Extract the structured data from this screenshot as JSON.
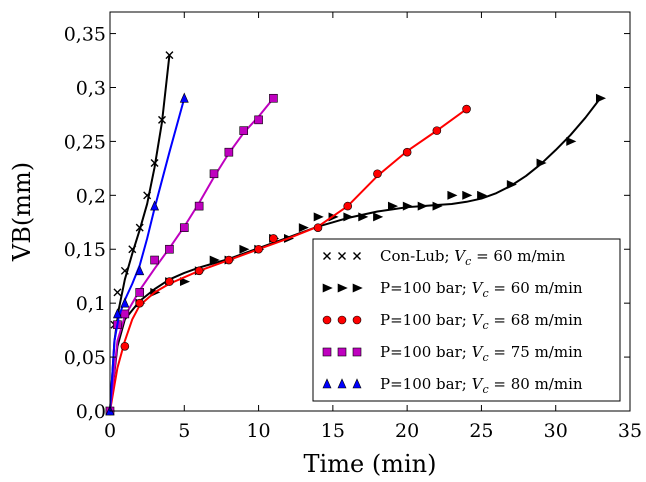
{
  "chart_data": {
    "type": "line",
    "xlabel": "Time (min)",
    "ylabel": "VB(mm)",
    "xlim": [
      0,
      35
    ],
    "ylim": [
      0,
      0.37
    ],
    "x_ticks": [
      0,
      5,
      10,
      15,
      20,
      25,
      30,
      35
    ],
    "x_tick_labels": [
      "0",
      "5",
      "10",
      "15",
      "20",
      "25",
      "30",
      "35"
    ],
    "y_ticks": [
      0,
      0.05,
      0.1,
      0.15,
      0.2,
      0.25,
      0.3,
      0.35
    ],
    "y_tick_labels": [
      "0,0",
      "0,05",
      "0,1",
      "0,15",
      "0,2",
      "0,25",
      "0,3",
      "0,35"
    ],
    "grid": false,
    "legend_position": "bottom-right",
    "series": [
      {
        "name": "Con-Lub; V_c = 60 m/min",
        "legend_prefix": "Con-Lub; ",
        "legend_suffix": " = 60 m/min",
        "marker": "x",
        "line_color": "#000000",
        "marker_color": "#000000",
        "points": [
          [
            0,
            0
          ],
          [
            0.3,
            0.08
          ],
          [
            0.5,
            0.11
          ],
          [
            1,
            0.13
          ],
          [
            1.5,
            0.15
          ],
          [
            2,
            0.17
          ],
          [
            2.5,
            0.2
          ],
          [
            3,
            0.23
          ],
          [
            3.5,
            0.27
          ],
          [
            4,
            0.33
          ]
        ],
        "fit": [
          [
            0,
            0
          ],
          [
            0.3,
            0.065
          ],
          [
            0.6,
            0.095
          ],
          [
            1,
            0.122
          ],
          [
            1.5,
            0.146
          ],
          [
            2,
            0.168
          ],
          [
            2.5,
            0.192
          ],
          [
            3,
            0.226
          ],
          [
            3.5,
            0.268
          ],
          [
            4,
            0.33
          ]
        ]
      },
      {
        "name": "P=100 bar; V_c = 60 m/min",
        "legend_prefix": "P=100 bar; ",
        "legend_suffix": " = 60 m/min",
        "marker": "triangle-right",
        "line_color": "#000000",
        "marker_color": "#000000",
        "points": [
          [
            0,
            0
          ],
          [
            1,
            0.09
          ],
          [
            2,
            0.1
          ],
          [
            3,
            0.11
          ],
          [
            4,
            0.12
          ],
          [
            5,
            0.12
          ],
          [
            6,
            0.13
          ],
          [
            7,
            0.14
          ],
          [
            8,
            0.14
          ],
          [
            9,
            0.15
          ],
          [
            10,
            0.15
          ],
          [
            11,
            0.16
          ],
          [
            12,
            0.16
          ],
          [
            13,
            0.17
          ],
          [
            14,
            0.18
          ],
          [
            15,
            0.18
          ],
          [
            16,
            0.18
          ],
          [
            17,
            0.18
          ],
          [
            18,
            0.18
          ],
          [
            19,
            0.19
          ],
          [
            20,
            0.19
          ],
          [
            21,
            0.19
          ],
          [
            22,
            0.19
          ],
          [
            23,
            0.2
          ],
          [
            24,
            0.2
          ],
          [
            25,
            0.2
          ],
          [
            27,
            0.21
          ],
          [
            29,
            0.23
          ],
          [
            31,
            0.25
          ],
          [
            33,
            0.29
          ]
        ],
        "fit": [
          [
            0,
            0
          ],
          [
            0.5,
            0.06
          ],
          [
            1,
            0.085
          ],
          [
            2,
            0.102
          ],
          [
            3,
            0.113
          ],
          [
            4,
            0.122
          ],
          [
            5,
            0.128
          ],
          [
            6,
            0.133
          ],
          [
            7,
            0.137
          ],
          [
            8,
            0.141
          ],
          [
            9,
            0.146
          ],
          [
            10,
            0.151
          ],
          [
            11,
            0.156
          ],
          [
            12,
            0.161
          ],
          [
            13,
            0.166
          ],
          [
            14,
            0.171
          ],
          [
            15,
            0.175
          ],
          [
            16,
            0.179
          ],
          [
            17,
            0.182
          ],
          [
            18,
            0.185
          ],
          [
            19,
            0.187
          ],
          [
            20,
            0.189
          ],
          [
            21,
            0.19
          ],
          [
            22,
            0.191
          ],
          [
            23,
            0.192
          ],
          [
            24,
            0.194
          ],
          [
            25,
            0.197
          ],
          [
            26,
            0.202
          ],
          [
            27,
            0.209
          ],
          [
            28,
            0.218
          ],
          [
            29,
            0.229
          ],
          [
            30,
            0.242
          ],
          [
            31,
            0.256
          ],
          [
            32,
            0.272
          ],
          [
            33,
            0.29
          ]
        ]
      },
      {
        "name": "P=100 bar; V_c = 68 m/min",
        "legend_prefix": "P=100 bar; ",
        "legend_suffix": " = 68 m/min",
        "marker": "circle",
        "line_color": "#ff0000",
        "marker_color": "#ff0000",
        "points": [
          [
            0,
            0
          ],
          [
            1,
            0.06
          ],
          [
            2,
            0.1
          ],
          [
            4,
            0.12
          ],
          [
            6,
            0.13
          ],
          [
            8,
            0.14
          ],
          [
            10,
            0.15
          ],
          [
            11,
            0.16
          ],
          [
            14,
            0.17
          ],
          [
            16,
            0.19
          ],
          [
            18,
            0.22
          ],
          [
            20,
            0.24
          ],
          [
            22,
            0.26
          ],
          [
            24,
            0.28
          ]
        ],
        "fit": [
          [
            0,
            0
          ],
          [
            0.5,
            0.04
          ],
          [
            1,
            0.065
          ],
          [
            1.5,
            0.085
          ],
          [
            2,
            0.098
          ],
          [
            3,
            0.11
          ],
          [
            4,
            0.118
          ],
          [
            6,
            0.13
          ],
          [
            8,
            0.14
          ],
          [
            10,
            0.15
          ],
          [
            12,
            0.16
          ],
          [
            14,
            0.171
          ],
          [
            16,
            0.19
          ],
          [
            18,
            0.218
          ],
          [
            20,
            0.241
          ],
          [
            22,
            0.26
          ],
          [
            24,
            0.28
          ]
        ]
      },
      {
        "name": "P=100 bar; V_c = 75 m/min",
        "legend_prefix": "P=100 bar; ",
        "legend_suffix": " = 75 m/min",
        "marker": "square",
        "line_color": "#bf00bf",
        "marker_color": "#bf00bf",
        "points": [
          [
            0,
            0
          ],
          [
            0.5,
            0.08
          ],
          [
            1,
            0.09
          ],
          [
            2,
            0.11
          ],
          [
            3,
            0.14
          ],
          [
            4,
            0.15
          ],
          [
            5,
            0.17
          ],
          [
            6,
            0.19
          ],
          [
            7,
            0.22
          ],
          [
            8,
            0.24
          ],
          [
            9,
            0.26
          ],
          [
            10,
            0.27
          ],
          [
            11,
            0.29
          ]
        ],
        "fit": [
          [
            0,
            0
          ],
          [
            0.5,
            0.065
          ],
          [
            1,
            0.088
          ],
          [
            2,
            0.112
          ],
          [
            3,
            0.132
          ],
          [
            4,
            0.151
          ],
          [
            5,
            0.171
          ],
          [
            6,
            0.193
          ],
          [
            7,
            0.217
          ],
          [
            8,
            0.239
          ],
          [
            9,
            0.258
          ],
          [
            10,
            0.273
          ],
          [
            11,
            0.29
          ]
        ]
      },
      {
        "name": "P=100 bar; V_c = 80 m/min",
        "legend_prefix": "P=100 bar; ",
        "legend_suffix": " = 80 m/min",
        "marker": "triangle-up",
        "line_color": "#0000ff",
        "marker_color": "#0000ff",
        "points": [
          [
            0,
            0
          ],
          [
            0.5,
            0.09
          ],
          [
            1,
            0.1
          ],
          [
            2,
            0.13
          ],
          [
            3,
            0.19
          ],
          [
            5,
            0.29
          ]
        ],
        "fit": [
          [
            0,
            0
          ],
          [
            0.3,
            0.065
          ],
          [
            0.6,
            0.088
          ],
          [
            1,
            0.103
          ],
          [
            1.5,
            0.118
          ],
          [
            2,
            0.135
          ],
          [
            2.5,
            0.16
          ],
          [
            3,
            0.188
          ],
          [
            4,
            0.24
          ],
          [
            5,
            0.29
          ]
        ]
      }
    ]
  }
}
